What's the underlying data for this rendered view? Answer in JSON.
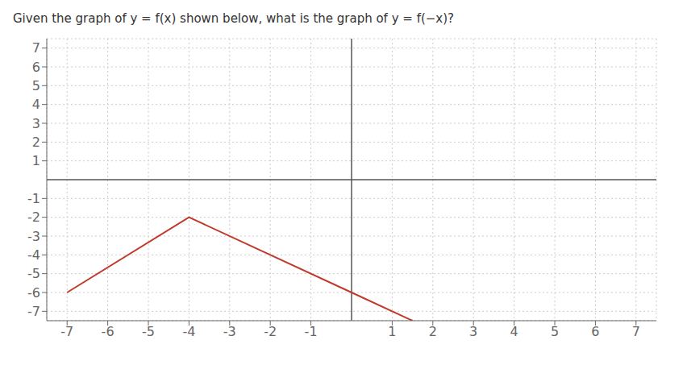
{
  "chart_data": {
    "type": "line",
    "title": "Given the graph of y = f(x) shown below, what is the graph of y = f(−x)?",
    "x": [
      -7,
      -4,
      0,
      1.5
    ],
    "values": [
      -6,
      -2,
      -6,
      -7.5
    ],
    "color": "#c0392b",
    "xlim": [
      -7.5,
      7.5
    ],
    "ylim": [
      -7.5,
      7.5
    ],
    "xticks": [
      -7,
      -6,
      -5,
      -4,
      -3,
      -2,
      -1,
      1,
      2,
      3,
      4,
      5,
      6,
      7
    ],
    "yticks": [
      -7,
      -6,
      -5,
      -4,
      -3,
      -2,
      -1,
      1,
      2,
      3,
      4,
      5,
      6,
      7
    ],
    "grid": true
  }
}
